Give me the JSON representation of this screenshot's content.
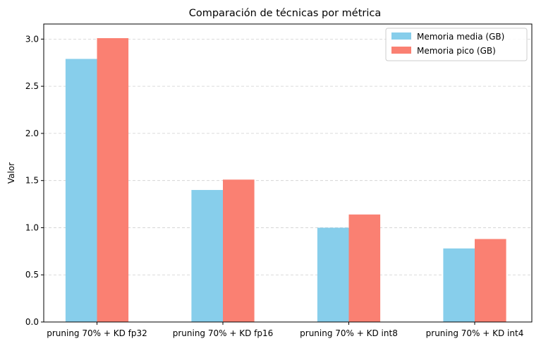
{
  "chart_data": {
    "type": "bar",
    "title": "Comparación de técnicas por métrica",
    "xlabel": "",
    "ylabel": "Valor",
    "categories": [
      "pruning 70% + KD fp32",
      "pruning 70% + KD fp16",
      "pruning 70% + KD int8",
      "pruning 70% + KD int4"
    ],
    "series": [
      {
        "name": "Memoria media (GB)",
        "color": "#87CEEB",
        "values": [
          2.79,
          1.4,
          1.0,
          0.78
        ]
      },
      {
        "name": "Memoria pico (GB)",
        "color": "#FA8072",
        "values": [
          3.01,
          1.51,
          1.14,
          0.88
        ]
      }
    ],
    "ylim": [
      0,
      3.16
    ],
    "yticks": [
      0.0,
      0.5,
      1.0,
      1.5,
      2.0,
      2.5,
      3.0
    ],
    "ytick_labels": [
      "0.0",
      "0.5",
      "1.0",
      "1.5",
      "2.0",
      "2.5",
      "3.0"
    ],
    "grid": "y-dashed",
    "legend_position": "top-right"
  }
}
